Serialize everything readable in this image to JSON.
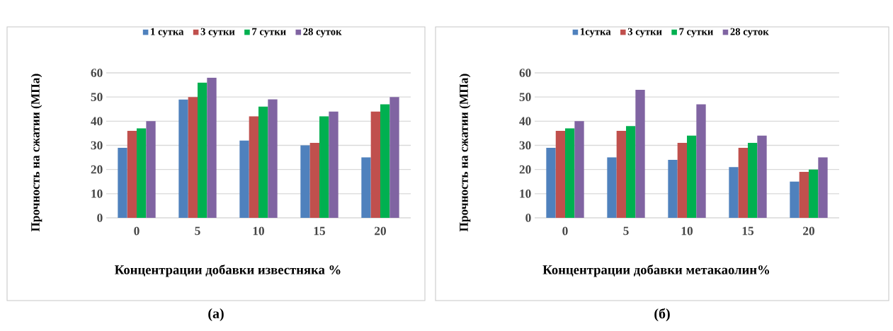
{
  "chart_data": [
    {
      "type": "bar",
      "xlabel": "Концентрации добавки  известняка %",
      "ylabel": "Прочность на сжатии (МПа)",
      "categories": [
        "0",
        "5",
        "10",
        "15",
        "20"
      ],
      "series": [
        {
          "name": "1 сутка",
          "color": "#4f81bd",
          "values": [
            29,
            49,
            32,
            30,
            25
          ]
        },
        {
          "name": "3 сутки",
          "color": "#c0504d",
          "values": [
            36,
            50,
            42,
            31,
            44
          ]
        },
        {
          "name": "7 сутки",
          "color": "#00b050",
          "values": [
            37,
            56,
            46,
            42,
            47
          ]
        },
        {
          "name": "28 суток",
          "color": "#8064a2",
          "values": [
            40,
            58,
            49,
            44,
            50
          ]
        }
      ],
      "ylim": [
        0,
        60
      ],
      "yticks": [
        0,
        10,
        20,
        30,
        40,
        50,
        60
      ],
      "grid": "y",
      "legend": "top",
      "annotations": [
        "(а)"
      ]
    },
    {
      "type": "bar",
      "xlabel": "Концентрации добавки  метакаолин%",
      "ylabel": "Прочность на сжатии (МПа)",
      "categories": [
        "0",
        "5",
        "10",
        "15",
        "20"
      ],
      "series": [
        {
          "name": "1сутка",
          "color": "#4f81bd",
          "values": [
            29,
            25,
            24,
            21,
            15
          ]
        },
        {
          "name": "3 сутки",
          "color": "#c0504d",
          "values": [
            36,
            36,
            31,
            29,
            19
          ]
        },
        {
          "name": "7 сутки",
          "color": "#00b050",
          "values": [
            37,
            38,
            34,
            31,
            20
          ]
        },
        {
          "name": "28 суток",
          "color": "#8064a2",
          "values": [
            40,
            53,
            47,
            34,
            25
          ]
        }
      ],
      "ylim": [
        0,
        60
      ],
      "yticks": [
        0,
        10,
        20,
        30,
        40,
        50,
        60
      ],
      "grid": "y",
      "legend": "top",
      "annotations": [
        "(б)"
      ]
    }
  ]
}
